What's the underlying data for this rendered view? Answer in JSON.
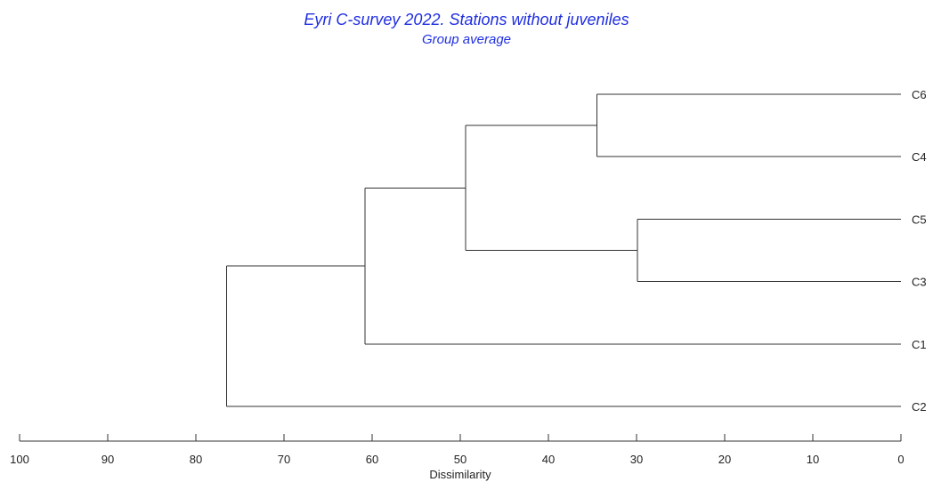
{
  "chart_data": {
    "type": "dendrogram",
    "title": "Eyri C-survey 2022. Stations without juveniles",
    "subtitle": "Group average",
    "xlabel": "Dissimilarity",
    "xlim": [
      100,
      0
    ],
    "ticks": [
      100,
      90,
      80,
      70,
      60,
      50,
      40,
      30,
      20,
      10,
      0
    ],
    "leaves": [
      "C6",
      "C4",
      "C5",
      "C3",
      "C1",
      "C2"
    ],
    "merges": [
      {
        "left": "C6",
        "right": "C4",
        "height": 34.5
      },
      {
        "left": "C5",
        "right": "C3",
        "height": 29.9
      },
      {
        "left": "C6+C4",
        "right": "C5+C3",
        "height": 49.4
      },
      {
        "left": "C6+C4+C5+C3",
        "right": "C1",
        "height": 60.8
      },
      {
        "left": "C6+C4+C5+C3+C1",
        "right": "C2",
        "height": 76.5
      }
    ]
  }
}
